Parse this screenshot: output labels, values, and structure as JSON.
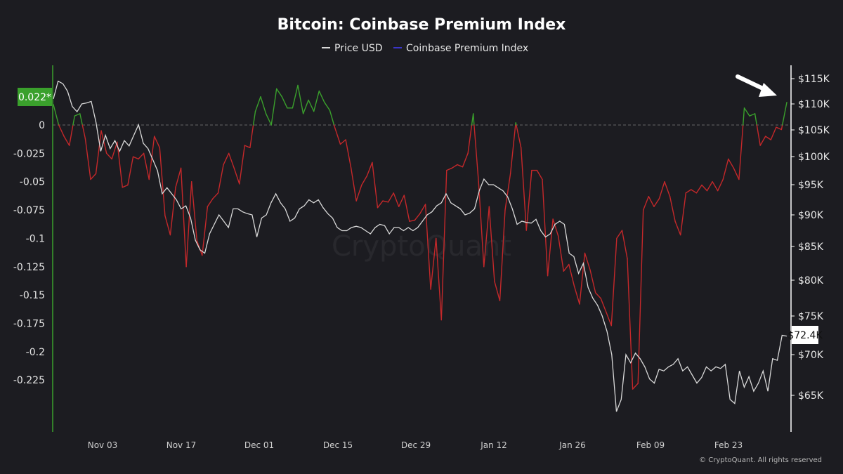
{
  "chart_data": {
    "type": "line",
    "title": "Bitcoin: Coinbase Premium Index",
    "legend": [
      {
        "label": "Price USD",
        "color": "#d9d9d9"
      },
      {
        "label": "Coinbase Premium Index",
        "color": "#3b35c9"
      }
    ],
    "legend_position": "top-center",
    "x_ticks": [
      "Nov 03",
      "Nov 17",
      "Dec 01",
      "Dec 15",
      "Dec 29",
      "Jan 12",
      "Jan 26",
      "Feb 09",
      "Feb 23"
    ],
    "left_axis": {
      "ticks": [
        "0",
        "-0.025",
        "-0.05",
        "-0.075",
        "-0.1",
        "-0.125",
        "-0.15",
        "-0.175",
        "-0.2",
        "-0.225"
      ],
      "current_label": "0.022*"
    },
    "right_axis": {
      "ticks": [
        "$115K",
        "$110K",
        "$105K",
        "$100K",
        "$95K",
        "$90K",
        "$85K",
        "$80K",
        "$75K",
        "$70K",
        "$65K"
      ],
      "current_label": "$72.4K"
    },
    "colors": {
      "positive": "#3aa02c",
      "negative": "#c4282a",
      "price": "#d9d9d9",
      "zero_line": "#666666",
      "left_axis": "#3aa02c",
      "right_axis": "#ffffff"
    },
    "series": [
      {
        "name": "Coinbase Premium Index",
        "values": [
          0.018,
          0.0,
          -0.01,
          -0.018,
          0.008,
          0.01,
          -0.012,
          -0.048,
          -0.043,
          -0.005,
          -0.025,
          -0.03,
          -0.015,
          -0.055,
          -0.053,
          -0.028,
          -0.03,
          -0.025,
          -0.048,
          -0.01,
          -0.02,
          -0.08,
          -0.097,
          -0.055,
          -0.038,
          -0.125,
          -0.05,
          -0.102,
          -0.115,
          -0.072,
          -0.065,
          -0.06,
          -0.035,
          -0.025,
          -0.038,
          -0.052,
          -0.018,
          -0.02,
          0.012,
          0.025,
          0.01,
          0.0,
          0.032,
          0.025,
          0.015,
          0.015,
          0.035,
          0.01,
          0.022,
          0.012,
          0.03,
          0.02,
          0.013,
          -0.003,
          -0.017,
          -0.013,
          -0.038,
          -0.067,
          -0.053,
          -0.045,
          -0.033,
          -0.073,
          -0.067,
          -0.068,
          -0.06,
          -0.072,
          -0.062,
          -0.085,
          -0.084,
          -0.078,
          -0.07,
          -0.145,
          -0.1,
          -0.172,
          -0.04,
          -0.038,
          -0.035,
          -0.037,
          -0.025,
          0.01,
          -0.05,
          -0.125,
          -0.072,
          -0.138,
          -0.155,
          -0.075,
          -0.043,
          0.002,
          -0.02,
          -0.093,
          -0.04,
          -0.04,
          -0.048,
          -0.133,
          -0.083,
          -0.098,
          -0.129,
          -0.123,
          -0.142,
          -0.158,
          -0.113,
          -0.128,
          -0.148,
          -0.153,
          -0.165,
          -0.177,
          -0.1,
          -0.093,
          -0.118,
          -0.233,
          -0.228,
          -0.075,
          -0.063,
          -0.072,
          -0.065,
          -0.05,
          -0.063,
          -0.085,
          -0.097,
          -0.06,
          -0.057,
          -0.06,
          -0.053,
          -0.058,
          -0.05,
          -0.058,
          -0.048,
          -0.03,
          -0.038,
          -0.048,
          0.015,
          0.008,
          0.01,
          -0.018,
          -0.01,
          -0.013,
          -0.002,
          -0.004,
          0.02
        ]
      },
      {
        "name": "Price USD",
        "values": [
          111000,
          114500,
          114000,
          112500,
          109500,
          108500,
          110000,
          110200,
          110500,
          106500,
          101000,
          104000,
          101500,
          103000,
          101000,
          103000,
          102000,
          104000,
          106000,
          102500,
          101500,
          99500,
          97500,
          93500,
          94500,
          93500,
          92500,
          91000,
          91500,
          89500,
          86000,
          84500,
          84000,
          87000,
          88500,
          90000,
          89000,
          88000,
          91000,
          91000,
          90500,
          90200,
          90000,
          86500,
          89500,
          90000,
          92000,
          93500,
          92000,
          91000,
          89000,
          89500,
          91000,
          91500,
          92500,
          92000,
          92500,
          91200,
          90200,
          89500,
          88000,
          87500,
          87500,
          88000,
          88200,
          88000,
          87500,
          87000,
          88000,
          88500,
          88300,
          87000,
          88000,
          88000,
          87500,
          88000,
          87500,
          88000,
          89000,
          90000,
          90500,
          91500,
          92000,
          93500,
          92000,
          91500,
          91000,
          90000,
          90300,
          91000,
          94000,
          96000,
          95000,
          95000,
          94500,
          94000,
          93000,
          91000,
          88500,
          89000,
          88800,
          88700,
          89300,
          87500,
          86500,
          87000,
          88500,
          89000,
          88500,
          84000,
          83500,
          81000,
          82500,
          79000,
          77500,
          76500,
          75000,
          73000,
          70000,
          63000,
          64500,
          70000,
          69000,
          70200,
          69500,
          68500,
          67000,
          66500,
          68200,
          68000,
          68500,
          68800,
          69500,
          68000,
          68500,
          67500,
          66500,
          67200,
          68500,
          68000,
          68500,
          68300,
          68800,
          64500,
          64000,
          68000,
          66000,
          67300,
          65500,
          66500,
          68000,
          65500,
          69500,
          69300,
          72500,
          72400
        ]
      }
    ]
  },
  "watermark": "CryptoQuant",
  "copyright": "© CryptoQuant. All rights reserved"
}
